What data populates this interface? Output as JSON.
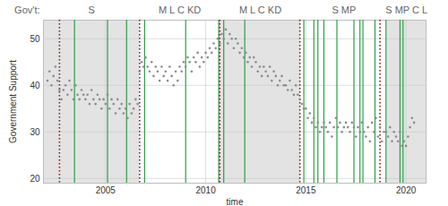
{
  "chart_data": {
    "type": "scatter",
    "x_label": "time",
    "y_label": "Government Support",
    "color": "#8c8c8c",
    "grid": true,
    "xlim": [
      2001.9,
      2021.0
    ],
    "xticks": [
      2005,
      2010,
      2015,
      2020
    ],
    "ylim": [
      19,
      54
    ],
    "yticks": [
      20,
      30,
      40,
      50
    ],
    "x": [
      2002.1,
      2002.2,
      2002.3,
      2002.4,
      2002.5,
      2002.6,
      2002.7,
      2002.8,
      2002.9,
      2003.0,
      2003.1,
      2003.2,
      2003.3,
      2003.4,
      2003.5,
      2003.6,
      2003.7,
      2003.8,
      2003.9,
      2004.0,
      2004.1,
      2004.2,
      2004.3,
      2004.4,
      2004.5,
      2004.6,
      2004.7,
      2004.8,
      2004.9,
      2005.0,
      2005.1,
      2005.2,
      2005.3,
      2005.4,
      2005.5,
      2005.6,
      2005.7,
      2005.8,
      2005.9,
      2006.0,
      2006.1,
      2006.2,
      2006.3,
      2006.4,
      2006.5,
      2006.6,
      2006.7,
      2006.8,
      2006.9,
      2007.0,
      2007.1,
      2007.2,
      2007.3,
      2007.4,
      2007.5,
      2007.6,
      2007.7,
      2007.8,
      2007.9,
      2008.0,
      2008.1,
      2008.2,
      2008.3,
      2008.4,
      2008.5,
      2008.6,
      2008.7,
      2008.8,
      2008.9,
      2009.0,
      2009.1,
      2009.2,
      2009.3,
      2009.4,
      2009.5,
      2009.6,
      2009.7,
      2009.8,
      2009.9,
      2010.0,
      2010.1,
      2010.2,
      2010.3,
      2010.4,
      2010.5,
      2010.6,
      2010.7,
      2010.8,
      2010.9,
      2011.0,
      2011.1,
      2011.2,
      2011.3,
      2011.4,
      2011.5,
      2011.6,
      2011.7,
      2011.8,
      2011.9,
      2012.0,
      2012.1,
      2012.2,
      2012.3,
      2012.4,
      2012.5,
      2012.6,
      2012.7,
      2012.8,
      2012.9,
      2013.0,
      2013.1,
      2013.2,
      2013.3,
      2013.4,
      2013.5,
      2013.6,
      2013.7,
      2013.8,
      2013.9,
      2014.0,
      2014.1,
      2014.2,
      2014.3,
      2014.4,
      2014.5,
      2014.6,
      2014.7,
      2014.8,
      2014.9,
      2015.0,
      2015.1,
      2015.2,
      2015.3,
      2015.4,
      2015.5,
      2015.6,
      2015.7,
      2015.8,
      2015.9,
      2016.0,
      2016.1,
      2016.2,
      2016.3,
      2016.4,
      2016.5,
      2016.6,
      2016.7,
      2016.8,
      2016.9,
      2017.0,
      2017.1,
      2017.2,
      2017.3,
      2017.4,
      2017.5,
      2017.6,
      2017.7,
      2017.8,
      2017.9,
      2018.0,
      2018.1,
      2018.2,
      2018.3,
      2018.4,
      2018.5,
      2018.6,
      2018.7,
      2018.8,
      2018.9,
      2019.0,
      2019.1,
      2019.2,
      2019.3,
      2019.4,
      2019.5,
      2019.6,
      2019.7,
      2019.8,
      2019.9,
      2020.0,
      2020.1,
      2020.2,
      2020.3,
      2020.4
    ],
    "values": [
      41,
      43,
      40,
      42,
      44,
      41,
      39,
      37,
      39,
      40,
      38,
      41,
      39,
      37,
      40,
      38,
      37,
      39,
      38,
      37,
      38,
      36,
      39,
      37,
      36,
      38,
      37,
      35,
      37,
      36,
      38,
      35,
      37,
      36,
      34,
      37,
      35,
      36,
      34,
      35,
      33,
      36,
      34,
      35,
      37,
      36,
      43,
      45,
      44,
      46,
      44,
      43,
      45,
      42,
      44,
      43,
      41,
      44,
      42,
      43,
      41,
      44,
      42,
      40,
      43,
      41,
      44,
      43,
      45,
      44,
      46,
      45,
      43,
      46,
      45,
      47,
      44,
      46,
      45,
      47,
      46,
      48,
      47,
      49,
      48,
      50,
      49,
      51,
      50,
      52,
      49,
      51,
      50,
      48,
      50,
      49,
      47,
      48,
      46,
      47,
      45,
      46,
      44,
      46,
      45,
      43,
      44,
      42,
      44,
      43,
      42,
      44,
      41,
      43,
      42,
      40,
      41,
      42,
      40,
      40,
      39,
      41,
      39,
      38,
      40,
      38,
      37,
      36,
      35,
      35,
      33,
      34,
      32,
      33,
      31,
      32,
      30,
      31,
      32,
      31,
      30,
      32,
      29,
      31,
      33,
      31,
      32,
      30,
      31,
      32,
      31,
      30,
      32,
      31,
      29,
      31,
      30,
      32,
      30,
      29,
      31,
      28,
      32,
      30,
      33,
      29,
      31,
      28,
      30,
      30,
      29,
      31,
      28,
      30,
      29,
      28,
      30,
      27,
      28,
      27,
      29,
      31,
      33,
      32
    ],
    "governments": {
      "title": "Gov't:",
      "labels": [
        "S",
        "M L C KD",
        "M L C KD",
        "S MP",
        "S MP C L"
      ],
      "start": [
        2001.9,
        2006.7,
        2010.7,
        2014.75,
        2019.05
      ],
      "end": [
        2006.7,
        2010.7,
        2014.75,
        2019.05,
        2021.0
      ],
      "colors": [
        "#e3e3e3",
        "#ffffff",
        "#e3e3e3",
        "#ffffff",
        "#e3e3e3"
      ]
    },
    "events": {
      "x": [
        2003.45,
        2005.1,
        2006.05,
        2006.95,
        2009.0,
        2010.65,
        2010.9,
        2011.95,
        2014.9,
        2015.4,
        2015.6,
        2015.9,
        2016.55,
        2017.4,
        2017.7,
        2017.85,
        2018.45,
        2019.0,
        2019.7,
        2019.85
      ],
      "color": "#2e9e4a",
      "line_style": "solid"
    },
    "elections": {
      "x": [
        2002.7,
        2006.7,
        2010.7,
        2014.7,
        2018.7
      ],
      "color": "#8b1a1a",
      "line_style": "dotted"
    }
  }
}
